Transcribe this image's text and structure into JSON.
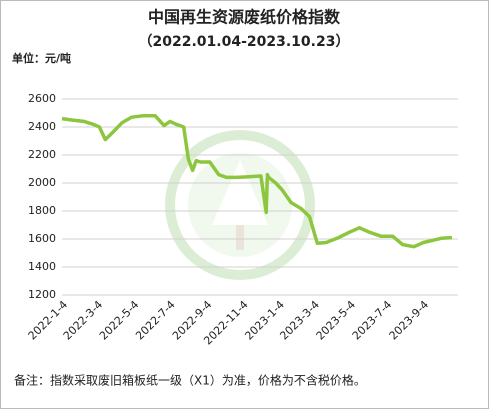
{
  "chart_data": {
    "type": "line",
    "title": "中国再生资源废纸价格指数",
    "subtitle": "（2022.01.04-2023.10.23）",
    "unit": "单位：元/吨",
    "note": "备注：指数采取废旧箱板纸一级（X1）为准，价格为不含税价格。",
    "x": [
      "2022-1-4",
      "2022-1-20",
      "2022-2-10",
      "2022-2-25",
      "2022-3-8",
      "2022-3-18",
      "2022-3-30",
      "2022-4-15",
      "2022-5-1",
      "2022-5-20",
      "2022-6-10",
      "2022-6-25",
      "2022-7-5",
      "2022-7-15",
      "2022-7-28",
      "2022-8-5",
      "2022-8-12",
      "2022-8-18",
      "2022-8-25",
      "2022-9-10",
      "2022-9-25",
      "2022-10-8",
      "2022-10-25",
      "2022-11-15",
      "2022-12-5",
      "2022-12-14",
      "2022-12-16",
      "2022-12-18",
      "2022-12-30",
      "2023-1-10",
      "2023-1-25",
      "2023-2-10",
      "2023-2-25",
      "2023-3-10",
      "2023-3-25",
      "2023-4-15",
      "2023-5-4",
      "2023-5-20",
      "2023-6-5",
      "2023-6-25",
      "2023-7-15",
      "2023-8-1",
      "2023-8-20",
      "2023-9-5",
      "2023-9-20",
      "2023-10-5",
      "2023-10-23"
    ],
    "series": [
      {
        "name": "废纸价格指数",
        "color": "#8cc63e",
        "values": [
          2460,
          2450,
          2440,
          2420,
          2400,
          2310,
          2360,
          2430,
          2470,
          2480,
          2480,
          2410,
          2440,
          2420,
          2400,
          2170,
          2090,
          2160,
          2150,
          2150,
          2060,
          2040,
          2040,
          2045,
          2050,
          1790,
          2060,
          2040,
          2000,
          1950,
          1860,
          1820,
          1760,
          1570,
          1575,
          1610,
          1650,
          1680,
          1650,
          1620,
          1620,
          1560,
          1545,
          1575,
          1590,
          1605,
          1610
        ]
      }
    ],
    "xlim": [
      "2022-1-4",
      "2023-10-23"
    ],
    "xticks": [
      "2022-1-4",
      "2022-3-4",
      "2022-5-4",
      "2022-7-4",
      "2022-9-4",
      "2022-11-4",
      "2023-1-4",
      "2023-3-4",
      "2023-5-4",
      "2023-7-4",
      "2023-9-4"
    ],
    "ylim": [
      1200,
      2600
    ],
    "yticks": [
      1200,
      1400,
      1600,
      1800,
      2000,
      2200,
      2400,
      2600
    ],
    "grid": true
  }
}
